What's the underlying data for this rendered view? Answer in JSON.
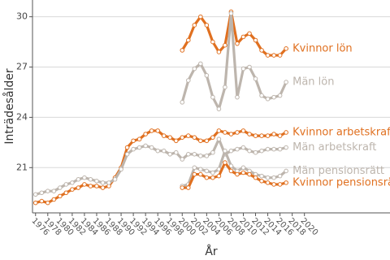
{
  "chart_data": {
    "type": "line",
    "x_label": "År",
    "y_label": "Inträdesålder",
    "x": [
      1976,
      1977,
      1978,
      1979,
      1980,
      1981,
      1982,
      1983,
      1984,
      1985,
      1986,
      1987,
      1988,
      1989,
      1990,
      1991,
      1992,
      1993,
      1994,
      1995,
      1996,
      1997,
      1998,
      1999,
      2000,
      2001,
      2002,
      2003,
      2004,
      2005,
      2006,
      2007,
      2008,
      2009,
      2010,
      2011,
      2012,
      2013,
      2014,
      2015,
      2016,
      2017
    ],
    "xlim": [
      1975.5,
      2034
    ],
    "xticks": [
      1976,
      1978,
      1980,
      1982,
      1984,
      1986,
      1988,
      1990,
      1992,
      1994,
      1996,
      1998,
      2000,
      2002,
      2004,
      2006,
      2008,
      2010,
      2012,
      2014,
      2016,
      2018,
      2020
    ],
    "ylim": [
      18.3,
      31
    ],
    "yticks": [
      21,
      24,
      27,
      30
    ],
    "grid": true,
    "series": [
      {
        "name": "Kvinnor lön",
        "color": "#e07020",
        "values": [
          null,
          null,
          null,
          null,
          null,
          null,
          null,
          null,
          null,
          null,
          null,
          null,
          null,
          null,
          null,
          null,
          null,
          null,
          null,
          null,
          null,
          null,
          null,
          null,
          28.0,
          28.6,
          29.5,
          30.0,
          29.5,
          28.5,
          27.9,
          28.3,
          30.3,
          28.4,
          28.8,
          29.0,
          28.6,
          28.0,
          27.7,
          27.7,
          27.7,
          28.1
        ]
      },
      {
        "name": "Män lön",
        "color": "#bdb5ad",
        "values": [
          null,
          null,
          null,
          null,
          null,
          null,
          null,
          null,
          null,
          null,
          null,
          null,
          null,
          null,
          null,
          null,
          null,
          null,
          null,
          null,
          null,
          null,
          null,
          null,
          24.9,
          26.2,
          26.9,
          27.2,
          26.5,
          25.2,
          24.5,
          25.8,
          30.2,
          25.2,
          26.9,
          27.0,
          26.3,
          25.3,
          25.1,
          25.2,
          25.3,
          26.1
        ]
      },
      {
        "name": "Kvinnor arbetskraft",
        "color": "#e07020",
        "values": [
          18.9,
          19.0,
          18.9,
          19.1,
          19.3,
          19.5,
          19.7,
          19.8,
          20.0,
          19.9,
          19.9,
          19.8,
          19.9,
          20.4,
          21.0,
          22.2,
          22.6,
          22.7,
          23.0,
          23.2,
          23.2,
          22.9,
          22.8,
          22.6,
          22.8,
          22.9,
          22.8,
          22.6,
          22.6,
          22.8,
          23.2,
          23.1,
          23.0,
          23.1,
          23.2,
          23.0,
          22.9,
          22.9,
          22.9,
          23.0,
          22.9,
          23.1
        ]
      },
      {
        "name": "Män arbetskraft",
        "color": "#bdb5ad",
        "values": [
          19.4,
          19.5,
          19.6,
          19.6,
          19.8,
          20.0,
          20.1,
          20.3,
          20.4,
          20.3,
          20.2,
          20.1,
          20.1,
          20.3,
          20.9,
          21.8,
          22.1,
          22.2,
          22.3,
          22.2,
          22.0,
          22.0,
          21.8,
          21.9,
          21.5,
          21.8,
          21.8,
          21.7,
          21.7,
          21.9,
          22.7,
          21.8,
          22.0,
          22.1,
          22.2,
          22.0,
          21.9,
          22.0,
          22.1,
          22.1,
          22.1,
          22.2
        ]
      },
      {
        "name": "Män pensionsrätt",
        "color": "#bdb5ad",
        "values": [
          null,
          null,
          null,
          null,
          null,
          null,
          null,
          null,
          null,
          null,
          null,
          null,
          null,
          null,
          null,
          null,
          null,
          null,
          null,
          null,
          null,
          null,
          null,
          null,
          19.9,
          20.0,
          21.0,
          20.9,
          20.8,
          20.7,
          20.9,
          22.0,
          21.1,
          20.8,
          21.0,
          20.8,
          20.6,
          20.5,
          20.4,
          20.4,
          20.5,
          20.8
        ]
      },
      {
        "name": "Kvinnor pensionsrätt",
        "color": "#e07020",
        "values": [
          null,
          null,
          null,
          null,
          null,
          null,
          null,
          null,
          null,
          null,
          null,
          null,
          null,
          null,
          null,
          null,
          null,
          null,
          null,
          null,
          null,
          null,
          null,
          null,
          19.8,
          19.8,
          20.6,
          20.6,
          20.4,
          20.4,
          20.5,
          21.3,
          20.8,
          20.6,
          20.7,
          20.6,
          20.4,
          20.2,
          20.1,
          20.0,
          20.0,
          20.1
        ]
      }
    ]
  }
}
